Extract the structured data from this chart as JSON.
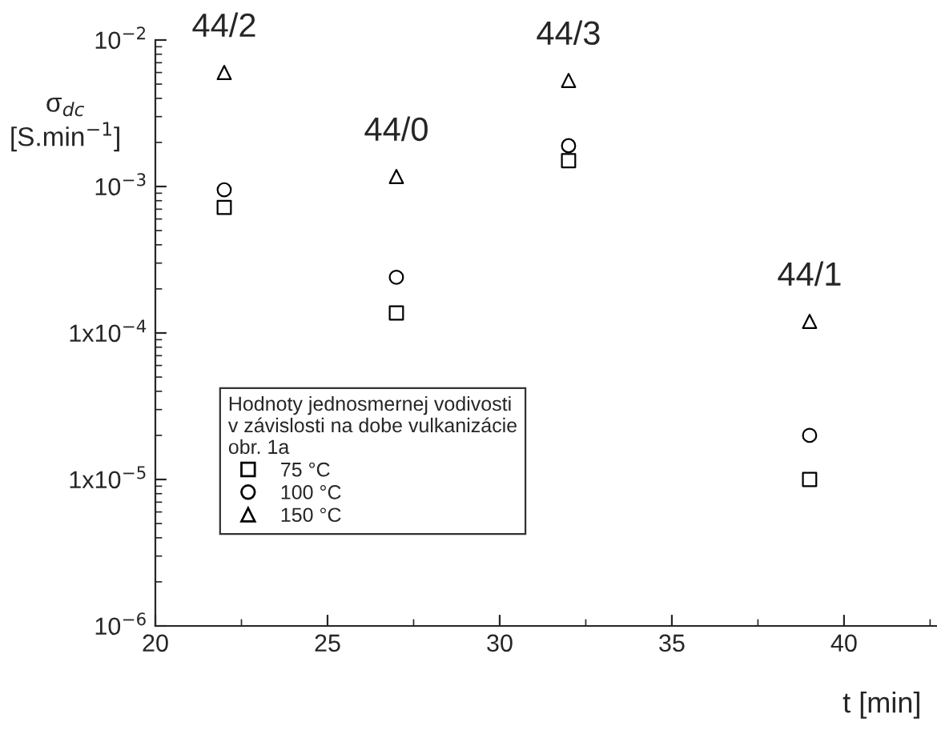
{
  "chart_data": {
    "type": "scatter",
    "x": [
      22,
      27,
      32,
      39
    ],
    "series": [
      {
        "name": "75 °C",
        "color": "#000000",
        "marker": "square",
        "values": [
          0.00072,
          0.000137,
          0.0015,
          1e-05
        ]
      },
      {
        "name": "100 °C",
        "color": "#000000",
        "marker": "circle",
        "values": [
          0.00095,
          0.00024,
          0.0019,
          2e-05
        ]
      },
      {
        "name": "150 °C",
        "color": "#000000",
        "marker": "triangle",
        "values": [
          0.006,
          0.00117,
          0.0053,
          0.00012
        ]
      }
    ],
    "xlabel": "t [min]",
    "ylabel": "σ$_{dc}$\n[S.min$^{−1}$]",
    "legend_title": "Hodnoty jednosmernej vodivosti\nv závislosti na dobe vulkanizácie\nobr. 1a",
    "legend": "bottom left",
    "log": "y",
    "grid": false,
    "xlim": [
      20,
      42.7
    ],
    "xticks": [
      20,
      25,
      30,
      35,
      40
    ],
    "ylim": [
      1e-06,
      0.01
    ],
    "yticks": [
      {
        "value": 1e-06,
        "label": "10$^{−6}$"
      },
      {
        "value": 1e-05,
        "label": "1x10$^{−5}$"
      },
      {
        "value": 0.0001,
        "label": "1x10$^{−4}$"
      },
      {
        "value": 0.001,
        "label": "10$^{−3}$"
      },
      {
        "value": 0.01,
        "label": "10$^{−2}$"
      }
    ],
    "annotations": [
      {
        "text": "44/2",
        "x": 22,
        "y": 0.006
      },
      {
        "text": "44/0",
        "x": 27,
        "y": 0.00117
      },
      {
        "text": "44/3",
        "x": 32,
        "y": 0.0053
      },
      {
        "text": "44/1",
        "x": 39,
        "y": 0.00012
      }
    ]
  }
}
